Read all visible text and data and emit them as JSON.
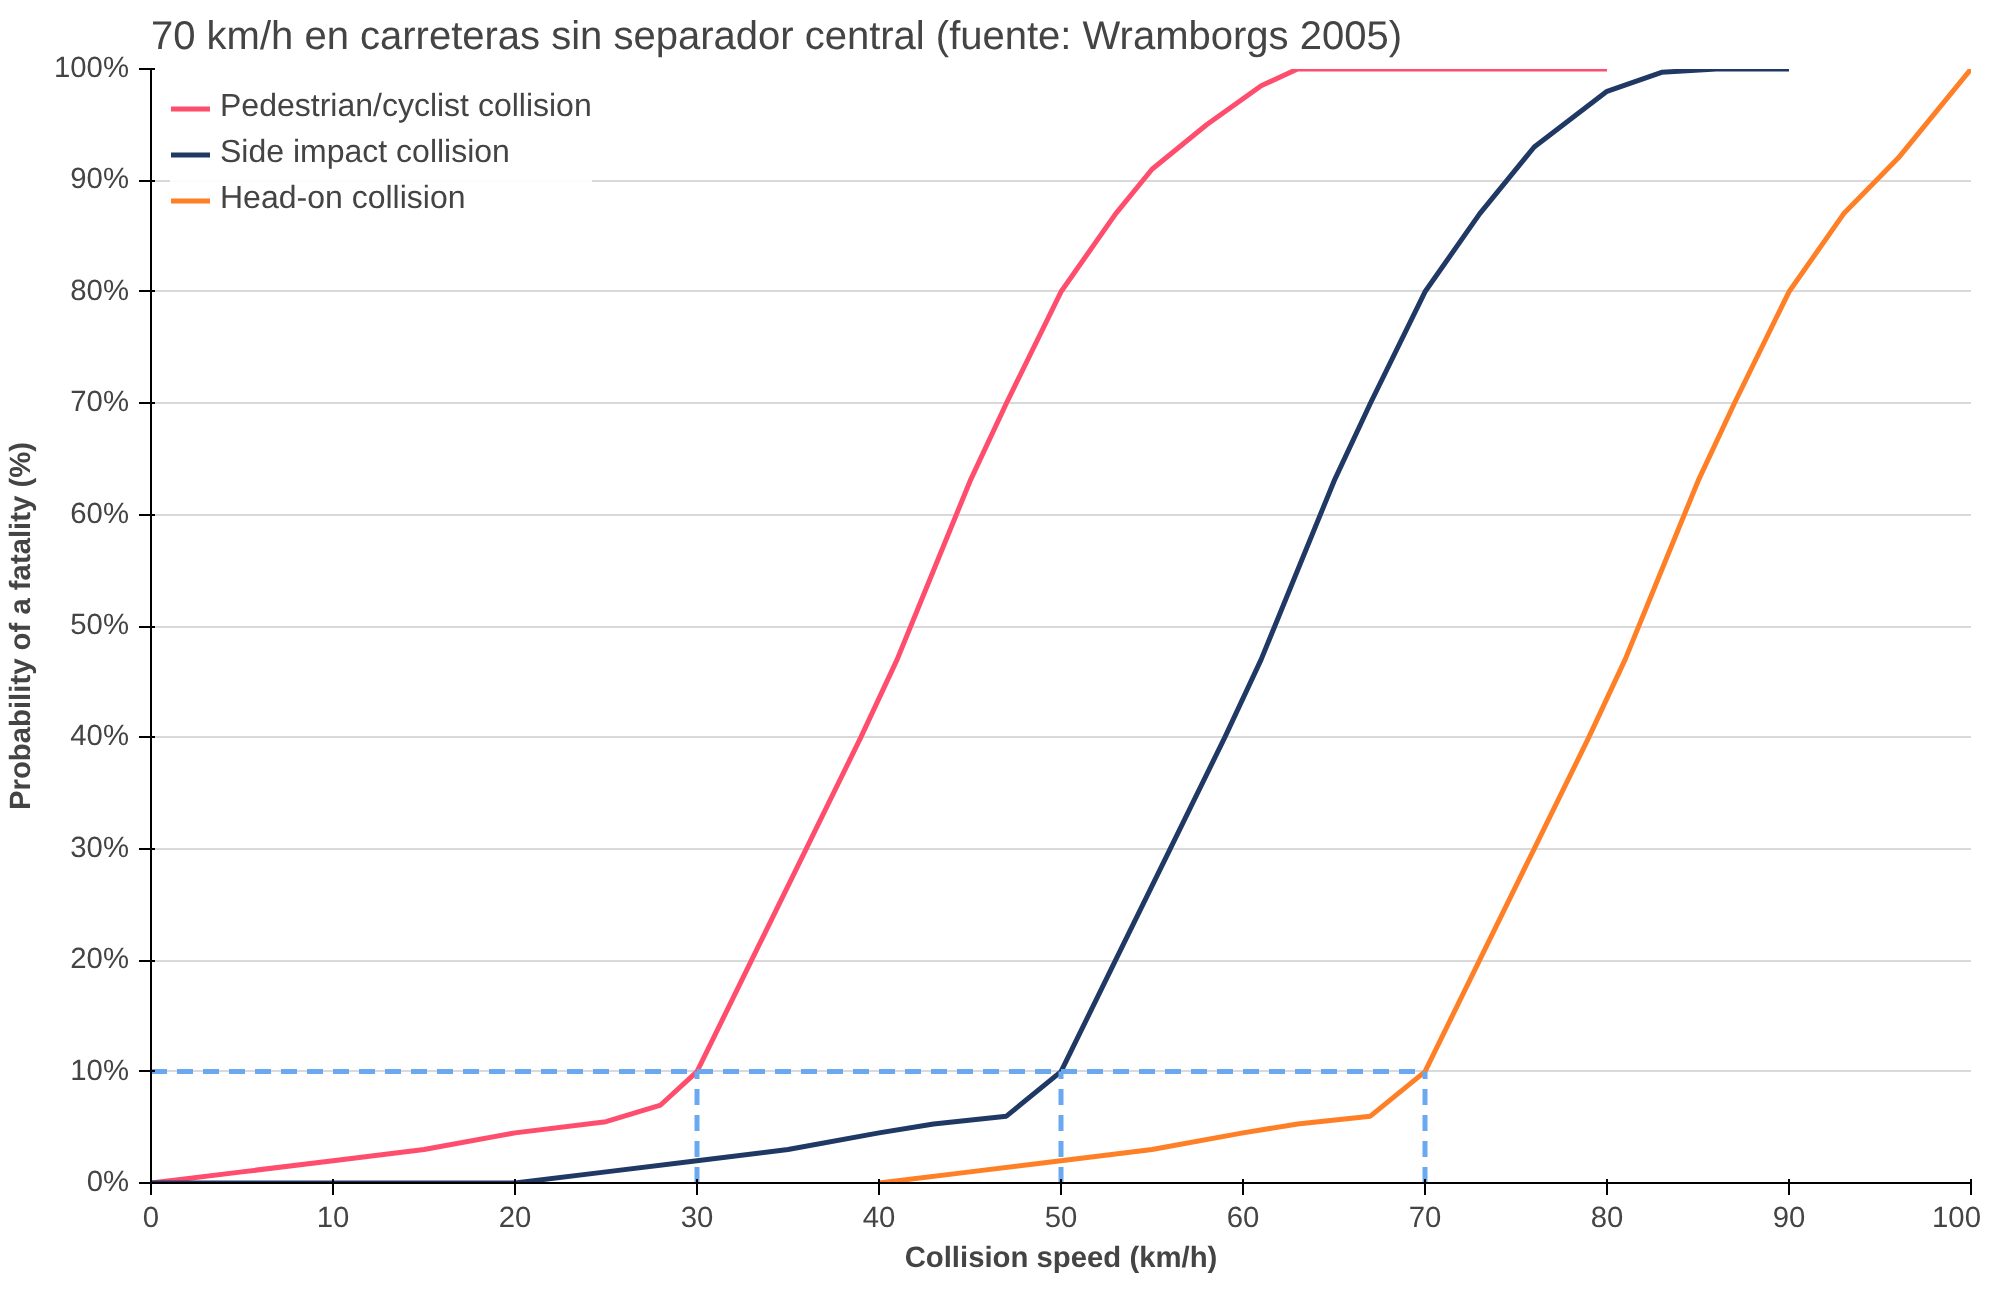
{
  "chart_data": {
    "type": "line",
    "title": "70 km/h en carreteras sin separador central (fuente: Wramborgs 2005)",
    "xlabel": "Collision speed (km/h)",
    "ylabel": "Probability of a fatality (%)",
    "xlim": [
      0,
      100
    ],
    "xticks": [
      0,
      10,
      20,
      30,
      40,
      50,
      60,
      70,
      80,
      90,
      100
    ],
    "ylim": [
      0,
      100
    ],
    "yticks": [
      {
        "value": 0,
        "label": "0%"
      },
      {
        "value": 10,
        "label": "10%"
      },
      {
        "value": 20,
        "label": "20%"
      },
      {
        "value": 30,
        "label": "30%"
      },
      {
        "value": 40,
        "label": "40%"
      },
      {
        "value": 50,
        "label": "50%"
      },
      {
        "value": 60,
        "label": "60%"
      },
      {
        "value": 70,
        "label": "70%"
      },
      {
        "value": 80,
        "label": "80%"
      },
      {
        "value": 90,
        "label": "90%"
      },
      {
        "value": 100,
        "label": "100%"
      }
    ],
    "grid": "y",
    "legend": "top left",
    "line_style": "solid",
    "series": [
      {
        "name": "Pedestrian/cyclist collision",
        "color": "#ff4d6d",
        "x": [
          0,
          5,
          10,
          15,
          20,
          25,
          28,
          30,
          33,
          36,
          39,
          41,
          43,
          45,
          47,
          50,
          53,
          55,
          58,
          61,
          63,
          70,
          75,
          80
        ],
        "values": [
          0,
          1,
          2,
          3,
          4.5,
          5.5,
          7,
          10,
          20,
          30,
          40,
          47,
          55,
          63,
          70,
          80,
          87,
          91,
          95,
          98.5,
          100,
          100,
          100,
          100
        ]
      },
      {
        "name": "Side impact collision",
        "color": "#1f3864",
        "x": [
          0,
          10,
          20,
          25,
          30,
          35,
          40,
          43,
          47,
          50,
          53,
          56,
          59,
          61,
          63,
          65,
          67,
          70,
          73,
          76,
          80,
          83,
          86,
          90
        ],
        "values": [
          0,
          0,
          0,
          1,
          2,
          3,
          4.5,
          5.3,
          6,
          10,
          20,
          30,
          40,
          47,
          55,
          63,
          70,
          80,
          87,
          93,
          98,
          99.7,
          100,
          100
        ]
      },
      {
        "name": "Head-on collision",
        "color": "#ff7f27",
        "x": [
          40,
          45,
          50,
          55,
          60,
          63,
          67,
          70,
          73,
          76,
          79,
          81,
          83,
          85,
          87,
          90,
          93,
          96,
          100
        ],
        "values": [
          0,
          1,
          2,
          3,
          4.5,
          5.3,
          6,
          10,
          20,
          30,
          40,
          47,
          55,
          63,
          70,
          80,
          87,
          92,
          100
        ]
      },
      {
        "color": "#6aa9f0",
        "line_style": "dashed",
        "x": [
          0,
          70
        ],
        "values": [
          10,
          10
        ]
      },
      {
        "color": "#6aa9f0",
        "line_style": "dashed",
        "x": [
          30,
          30
        ],
        "values": [
          0,
          10
        ]
      },
      {
        "color": "#6aa9f0",
        "line_style": "dashed",
        "x": [
          50,
          50
        ],
        "values": [
          0,
          10
        ]
      },
      {
        "color": "#6aa9f0",
        "line_style": "dashed",
        "x": [
          70,
          70
        ],
        "values": [
          0,
          10
        ]
      }
    ]
  }
}
